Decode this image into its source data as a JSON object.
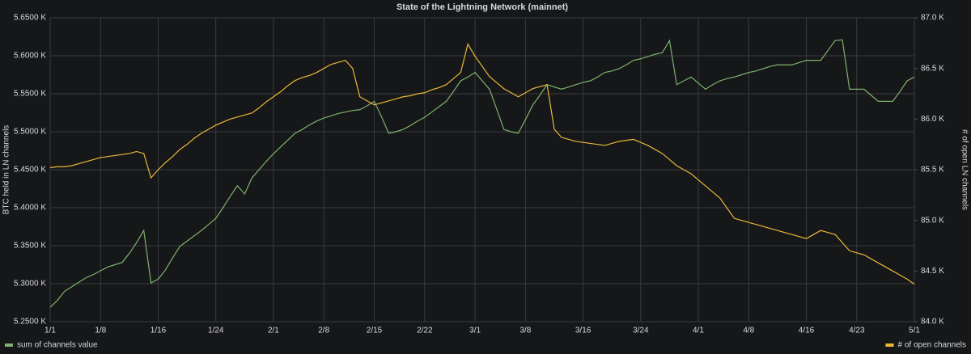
{
  "chart_data": {
    "type": "line",
    "title": "State of the Lightning Network (mainnet)",
    "y_label": "BTC held in LN channels",
    "y2_label": "# of open LN channels",
    "categories": [
      "1/1",
      null,
      null,
      null,
      null,
      null,
      null,
      "1/8",
      null,
      null,
      null,
      null,
      null,
      null,
      null,
      "1/16",
      null,
      null,
      null,
      null,
      null,
      null,
      null,
      "1/24",
      null,
      null,
      null,
      null,
      null,
      null,
      null,
      "2/1",
      null,
      null,
      null,
      null,
      null,
      null,
      "2/8",
      null,
      null,
      null,
      null,
      null,
      null,
      "2/15",
      null,
      null,
      null,
      null,
      null,
      null,
      "2/22",
      null,
      null,
      null,
      null,
      null,
      null,
      "3/1",
      null,
      null,
      null,
      null,
      null,
      null,
      "3/8",
      null,
      null,
      null,
      null,
      null,
      null,
      null,
      "3/16",
      null,
      null,
      null,
      null,
      null,
      null,
      null,
      "3/24",
      null,
      null,
      null,
      null,
      null,
      null,
      null,
      "4/1",
      null,
      null,
      null,
      null,
      null,
      null,
      "4/8",
      null,
      null,
      null,
      null,
      null,
      null,
      null,
      "4/16",
      null,
      null,
      null,
      null,
      null,
      null,
      "4/23",
      null,
      null,
      null,
      null,
      null,
      null,
      null,
      "5/1"
    ],
    "series": [
      {
        "name": "sum of channels value",
        "color": "#7eb26d",
        "axis": "y",
        "values": [
          5.269,
          5.278,
          5.29,
          5.296,
          5.302,
          5.308,
          5.312,
          5.317,
          5.322,
          5.325,
          5.328,
          5.34,
          5.354,
          5.37,
          5.301,
          5.306,
          5.318,
          5.334,
          5.349,
          5.356,
          5.363,
          5.37,
          5.378,
          5.386,
          5.4,
          5.415,
          5.429,
          5.418,
          5.439,
          5.45,
          5.461,
          5.471,
          5.48,
          5.489,
          5.498,
          5.503,
          5.509,
          5.514,
          5.518,
          5.521,
          5.524,
          5.526,
          5.528,
          5.529,
          5.534,
          5.54,
          5.52,
          5.498,
          5.5,
          5.503,
          5.508,
          5.514,
          5.519,
          5.526,
          5.533,
          5.54,
          5.553,
          5.567,
          5.572,
          5.578,
          5.567,
          5.556,
          5.53,
          5.503,
          5.5,
          5.498,
          5.516,
          5.535,
          5.548,
          5.562,
          5.559,
          5.556,
          5.559,
          5.562,
          5.565,
          5.567,
          5.572,
          5.578,
          5.58,
          5.583,
          5.588,
          5.594,
          5.596,
          5.599,
          5.602,
          5.604,
          5.62,
          5.562,
          5.567,
          5.572,
          5.564,
          5.556,
          5.562,
          5.567,
          5.57,
          5.572,
          5.575,
          5.578,
          5.58,
          5.583,
          5.586,
          5.588,
          5.588,
          5.588,
          5.591,
          5.594,
          5.594,
          5.594,
          5.607,
          5.62,
          5.621,
          5.556,
          5.556,
          5.556,
          5.548,
          5.54,
          5.54,
          5.54,
          5.553,
          5.567,
          5.572
        ]
      },
      {
        "name": "# of open channels",
        "color": "#eab839",
        "axis": "y2",
        "values": [
          85.52,
          85.53,
          85.53,
          85.54,
          85.56,
          85.58,
          85.6,
          85.62,
          85.63,
          85.64,
          85.65,
          85.66,
          85.68,
          85.66,
          85.42,
          85.5,
          85.57,
          85.63,
          85.7,
          85.75,
          85.81,
          85.86,
          85.9,
          85.94,
          85.97,
          86.0,
          86.02,
          86.04,
          86.06,
          86.11,
          86.17,
          86.22,
          86.27,
          86.33,
          86.38,
          86.41,
          86.43,
          86.46,
          86.5,
          86.54,
          86.56,
          86.58,
          86.5,
          86.22,
          86.18,
          86.14,
          86.16,
          86.18,
          86.2,
          86.22,
          86.23,
          86.25,
          86.26,
          86.29,
          86.31,
          86.34,
          86.4,
          86.46,
          86.74,
          86.62,
          86.52,
          86.42,
          86.36,
          86.3,
          86.26,
          86.22,
          86.26,
          86.3,
          86.32,
          86.34,
          85.9,
          85.82,
          85.8,
          85.78,
          85.77,
          85.76,
          85.75,
          85.74,
          85.76,
          85.78,
          85.79,
          85.8,
          85.77,
          85.74,
          85.7,
          85.66,
          85.6,
          85.54,
          85.5,
          85.46,
          85.4,
          85.34,
          85.28,
          85.22,
          85.12,
          85.02,
          85.0,
          84.98,
          84.96,
          84.94,
          84.92,
          84.9,
          84.88,
          84.86,
          84.84,
          84.82,
          84.86,
          84.9,
          84.88,
          84.86,
          84.78,
          84.7,
          84.68,
          84.66,
          84.62,
          84.58,
          84.54,
          84.5,
          84.46,
          84.42,
          84.37
        ]
      }
    ],
    "ylim": [
      5.25,
      5.65
    ],
    "yticks": [
      {
        "value": 5.25,
        "label": "5.2500 K"
      },
      {
        "value": 5.3,
        "label": "5.3000 K"
      },
      {
        "value": 5.35,
        "label": "5.3500 K"
      },
      {
        "value": 5.4,
        "label": "5.4000 K"
      },
      {
        "value": 5.45,
        "label": "5.4500 K"
      },
      {
        "value": 5.5,
        "label": "5.5000 K"
      },
      {
        "value": 5.55,
        "label": "5.5500 K"
      },
      {
        "value": 5.6,
        "label": "5.6000 K"
      },
      {
        "value": 5.65,
        "label": "5.6500 K"
      }
    ],
    "y2lim": [
      84,
      87
    ],
    "y2ticks": [
      {
        "value": 84,
        "label": "84.0 K"
      },
      {
        "value": 84.5,
        "label": "84.5 K"
      },
      {
        "value": 85,
        "label": "85.0 K"
      },
      {
        "value": 85.5,
        "label": "85.5 K"
      },
      {
        "value": 86,
        "label": "86.0 K"
      },
      {
        "value": 86.5,
        "label": "86.5 K"
      },
      {
        "value": 87,
        "label": "87.0 K"
      }
    ],
    "grid": true
  }
}
